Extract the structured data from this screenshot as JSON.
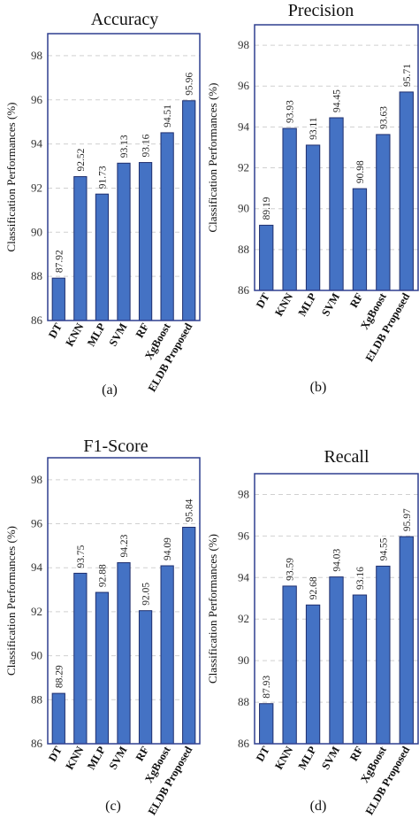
{
  "chart_data": [
    {
      "type": "bar",
      "title": "Accuracy",
      "ylabel": "Classification Performances (%)",
      "panel_label": "(a)",
      "categories": [
        "DT",
        "KNN",
        "MLP",
        "SVM",
        "RF",
        "XgBoost",
        "ELDB Proposed"
      ],
      "values": [
        87.92,
        92.52,
        91.73,
        93.13,
        93.16,
        94.51,
        95.96
      ],
      "value_labels": [
        "87.92",
        "92.52",
        "91.73",
        "93.13",
        "93.16",
        "94.51",
        "95.96"
      ],
      "ylim": [
        86,
        99
      ],
      "yticks": [
        86,
        88,
        90,
        92,
        94,
        96,
        98
      ],
      "grid": true,
      "color": "#4472c4"
    },
    {
      "type": "bar",
      "title": "Precision",
      "ylabel": "Classification Performances (%)",
      "panel_label": "(b)",
      "categories": [
        "DT",
        "KNN",
        "MLP",
        "SVM",
        "RF",
        "XgBoost",
        "ELDB Proposed"
      ],
      "values": [
        89.19,
        93.93,
        93.11,
        94.45,
        90.98,
        93.63,
        95.71
      ],
      "value_labels": [
        "89.19",
        "93.93",
        "93.11",
        "94.45",
        "90.98",
        "93.63",
        "95.71"
      ],
      "ylim": [
        86,
        99
      ],
      "yticks": [
        86,
        88,
        90,
        92,
        94,
        96,
        98
      ],
      "grid": true,
      "color": "#4472c4"
    },
    {
      "type": "bar",
      "title": "F1-Score",
      "ylabel": "Classification Performances (%)",
      "panel_label": "(c)",
      "categories": [
        "DT",
        "KNN",
        "MLP",
        "SVM",
        "RF",
        "XgBoost",
        "ELDB Proposed"
      ],
      "values": [
        88.29,
        93.75,
        92.88,
        94.23,
        92.05,
        94.09,
        95.84
      ],
      "value_labels": [
        "88.29",
        "93.75",
        "92.88",
        "94.23",
        "92.05",
        "94.09",
        "95.84"
      ],
      "ylim": [
        86,
        99
      ],
      "yticks": [
        86,
        88,
        90,
        92,
        94,
        96,
        98
      ],
      "grid": true,
      "color": "#4472c4"
    },
    {
      "type": "bar",
      "title": "Recall",
      "ylabel": "Classification Performances (%)",
      "panel_label": "(d)",
      "categories": [
        "DT",
        "KNN",
        "MLP",
        "SVM",
        "RF",
        "XgBoost",
        "ELDB Proposed"
      ],
      "values": [
        87.93,
        93.59,
        92.68,
        94.03,
        93.16,
        94.55,
        95.97
      ],
      "value_labels": [
        "87.93",
        "93.59",
        "92.68",
        "94.03",
        "93.16",
        "94.55",
        "95.97"
      ],
      "ylim": [
        86,
        99
      ],
      "yticks": [
        86,
        88,
        90,
        92,
        94,
        96,
        98
      ],
      "grid": true,
      "color": "#4472c4"
    }
  ]
}
